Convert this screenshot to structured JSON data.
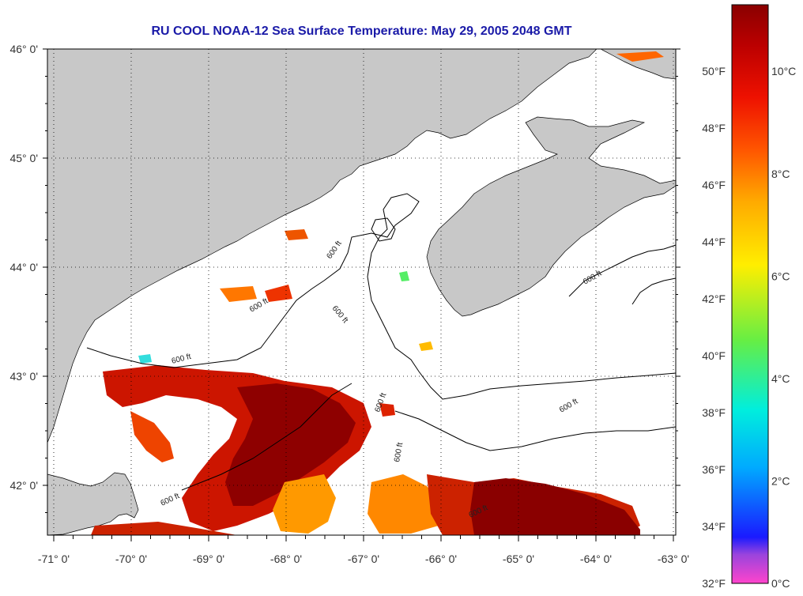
{
  "title": "RU COOL  NOAA-12  Sea Surface Temperature:  May 29, 2005 2048 GMT",
  "map": {
    "lon_range": [
      -71,
      -63
    ],
    "lat_range": [
      41.5,
      46
    ],
    "lat_ticks": [
      "46° 0'",
      "45° 0'",
      "44° 0'",
      "43° 0'",
      "42° 0'"
    ],
    "lon_ticks": [
      "-71° 0'",
      "-70° 0'",
      "-69° 0'",
      "-68° 0'",
      "-67° 0'",
      "-66° 0'",
      "-65° 0'",
      "-64° 0'",
      "-63° 0'"
    ],
    "contour_label": "600 ft",
    "land_color": "#c8c8c8",
    "cloud_color": "#ffffff",
    "grid": "dotted"
  },
  "colorbar": {
    "f_labels": [
      "50°F",
      "48°F",
      "46°F",
      "44°F",
      "42°F",
      "40°F",
      "38°F",
      "36°F",
      "34°F",
      "32°F"
    ],
    "c_labels": [
      "10°C",
      "8°C",
      "6°C",
      "4°C",
      "2°C",
      "0°C"
    ],
    "range_c": [
      0,
      11.3
    ],
    "stops": [
      "#ff44cc",
      "#9944dd",
      "#1a1aff",
      "#00aaff",
      "#00eedd",
      "#66ee44",
      "#ffee00",
      "#ffaa00",
      "#ff5500",
      "#ee1100",
      "#bb0000",
      "#8a0000"
    ]
  }
}
